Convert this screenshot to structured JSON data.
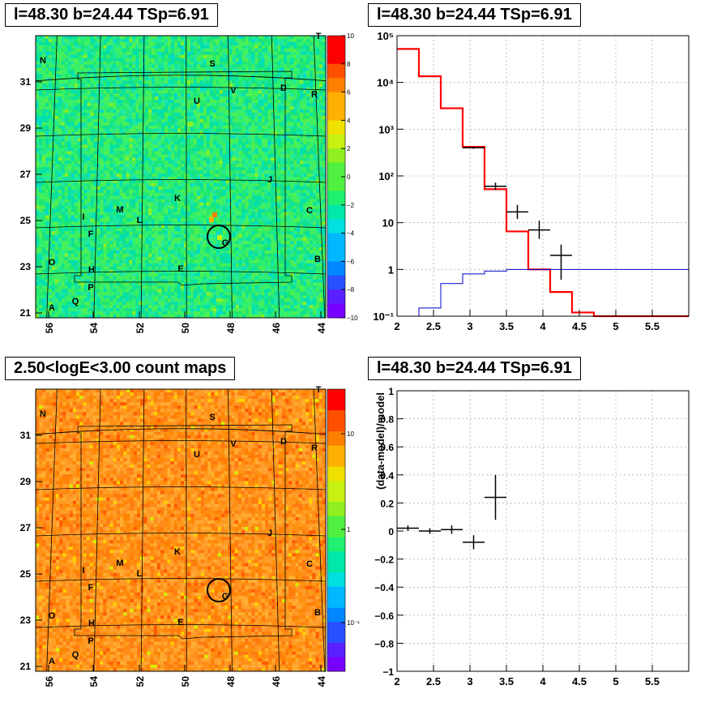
{
  "colors": {
    "spectrum_model": "#ff0000",
    "spectrum_background": "#0000cc",
    "data_points": "#000000",
    "frame": "#000000"
  },
  "panels": {
    "tl_title": "l=48.30 b=24.44 TSp=6.91",
    "tr_title": "l=48.30 b=24.44 TSp=6.91",
    "bl_title": "2.50<logE<3.00 count maps",
    "br_title": "l=48.30 b=24.44 TSp=6.91"
  },
  "chart_data": [
    {
      "type": "heatmap",
      "x_ticks": [
        "56",
        "54",
        "52",
        "50",
        "48",
        "46",
        "44"
      ],
      "y_ticks": [
        "21",
        "23",
        "25",
        "27",
        "29",
        "31"
      ],
      "colorbar_ticks": [
        "10",
        "8",
        "6",
        "4",
        "2",
        "0",
        "−2",
        "−4",
        "−6",
        "−8",
        "−10"
      ],
      "colorbar_range": [
        -10,
        10
      ],
      "source_marker": {
        "l": 48.3,
        "b": 24.44
      },
      "labels": [
        "T",
        "N",
        "S",
        "D",
        "V",
        "R",
        "U",
        "J",
        "K",
        "M",
        "L",
        "I",
        "C",
        "F",
        "G",
        "O",
        "H",
        "E",
        "B",
        "P",
        "Q",
        "A"
      ]
    },
    {
      "type": "line",
      "xlim": [
        2,
        6
      ],
      "ylim": [
        0.1,
        100000
      ],
      "y_scale": "log",
      "x_ticks": [
        "2",
        "2.5",
        "3",
        "3.5",
        "4",
        "4.5",
        "5",
        "5.5"
      ],
      "y_tick_labels": [
        "10⁻¹",
        "1",
        "10",
        "10²",
        "10³",
        "10⁴",
        "10⁵"
      ],
      "grid": true,
      "series": [
        {
          "kind": "step",
          "edges": [
            2.0,
            2.3,
            2.6,
            2.9,
            3.2,
            3.5,
            3.8,
            4.1,
            4.4,
            4.7,
            5.0,
            5.3,
            5.6,
            6.0
          ],
          "values": [
            52000,
            13500,
            2800,
            420,
            52,
            6.5,
            1.0,
            0.33,
            0.12,
            0.1,
            0.1,
            0.1,
            0.1
          ]
        },
        {
          "kind": "step",
          "edges": [
            2.0,
            2.3,
            2.6,
            2.9,
            3.2,
            3.5,
            3.8,
            4.1,
            4.4,
            4.7,
            5.0,
            5.3,
            5.6,
            6.0
          ],
          "values": [
            0.08,
            0.15,
            0.5,
            0.8,
            0.92,
            1.0,
            1.0,
            1.0,
            1.0,
            1.0,
            1.0,
            1.0,
            1.0
          ]
        },
        {
          "kind": "errorbar",
          "points": [
            {
              "x": 3.05,
              "y": 400,
              "xerr": 0.15,
              "ylo": 380,
              "yhi": 420
            },
            {
              "x": 3.35,
              "y": 60,
              "xerr": 0.15,
              "ylo": 50,
              "yhi": 72
            },
            {
              "x": 3.65,
              "y": 17,
              "xerr": 0.15,
              "ylo": 12,
              "yhi": 24
            },
            {
              "x": 3.95,
              "y": 7,
              "xerr": 0.15,
              "ylo": 4.5,
              "yhi": 11
            },
            {
              "x": 4.25,
              "y": 2,
              "xerr": 0.15,
              "ylo": 0.6,
              "yhi": 3.4
            }
          ]
        }
      ]
    },
    {
      "type": "heatmap",
      "x_ticks": [
        "56",
        "54",
        "52",
        "50",
        "48",
        "46",
        "44"
      ],
      "y_ticks": [
        "21",
        "23",
        "25",
        "27",
        "29",
        "31"
      ],
      "colorbar_ticks": [
        "10",
        "1",
        "10⁻¹"
      ],
      "colorbar_scale": "log",
      "source_marker": {
        "l": 48.3,
        "b": 24.44
      },
      "labels": [
        "T",
        "N",
        "S",
        "D",
        "V",
        "R",
        "U",
        "J",
        "K",
        "M",
        "L",
        "I",
        "C",
        "F",
        "G",
        "O",
        "H",
        "E",
        "B",
        "P",
        "Q",
        "A"
      ]
    },
    {
      "type": "scatter",
      "xlim": [
        2,
        6
      ],
      "ylim": [
        -1,
        1
      ],
      "x_ticks": [
        "2",
        "2.5",
        "3",
        "3.5",
        "4",
        "4.5",
        "5",
        "5.5"
      ],
      "y_ticks": [
        "1",
        "0.8",
        "0.6",
        "0.4",
        "0.2",
        "0",
        "−0.2",
        "−0.4",
        "−0.6",
        "−0.8",
        "−1"
      ],
      "ylabel": "(data-model)/model",
      "grid": true,
      "points": [
        {
          "x": 2.15,
          "y": 0.02,
          "xerr": 0.15,
          "yerr": 0.02
        },
        {
          "x": 2.45,
          "y": 0.0,
          "xerr": 0.15,
          "yerr": 0.02
        },
        {
          "x": 2.75,
          "y": 0.01,
          "xerr": 0.15,
          "yerr": 0.03
        },
        {
          "x": 3.05,
          "y": -0.08,
          "xerr": 0.15,
          "yerr": 0.05
        },
        {
          "x": 3.35,
          "y": 0.24,
          "xerr": 0.15,
          "yerr": 0.16
        }
      ]
    }
  ]
}
